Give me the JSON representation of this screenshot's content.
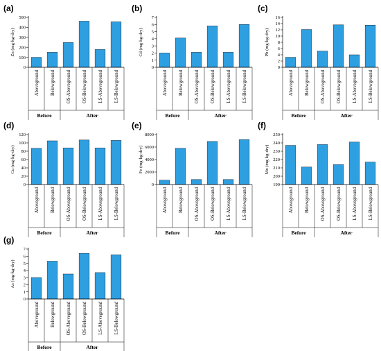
{
  "figure": {
    "bar_color": "#2e9fe0",
    "bar_edge_color": "#1a2a3a",
    "groups": [
      "Before",
      "After"
    ]
  },
  "chart_data": [
    {
      "type": "bar",
      "panel": "(a)",
      "ylabel": "Zn (mg·kg-dry)",
      "categories": [
        "Aboveground",
        "Belowground",
        "OS-Aboveground",
        "OS-Belowground",
        "LS-Aboveground",
        "LS-Belowground"
      ],
      "values": [
        100,
        150,
        248,
        462,
        178,
        455
      ],
      "ylim": [
        0,
        500
      ],
      "ticks": [
        0,
        100,
        200,
        300,
        400,
        500
      ],
      "grid": false
    },
    {
      "type": "bar",
      "panel": "(b)",
      "ylabel": "Cd (mg·kg-dry)",
      "categories": [
        "Aboveground",
        "Belowground",
        "OS-Aboveground",
        "OS-Belowground",
        "LS-Aboveground",
        "LS-Belowground"
      ],
      "values": [
        2.0,
        4.1,
        2.1,
        5.8,
        2.1,
        6.0
      ],
      "ylim": [
        0,
        7
      ],
      "ticks": [
        0,
        1,
        2,
        3,
        4,
        5,
        6,
        7
      ],
      "grid": false
    },
    {
      "type": "bar",
      "panel": "(c)",
      "ylabel": "Pb (mg·kg-dry)",
      "categories": [
        "Aboveground",
        "Belowground",
        "OS-Aboveground",
        "OS-Belowground",
        "LS-Aboveground",
        "LS-Belowground"
      ],
      "values": [
        3.2,
        12.1,
        5.2,
        13.6,
        4.0,
        13.5
      ],
      "ylim": [
        0,
        16
      ],
      "ticks": [
        0,
        2,
        4,
        6,
        8,
        10,
        12,
        14,
        16
      ],
      "grid": false
    },
    {
      "type": "bar",
      "panel": "(d)",
      "ylabel": "Cu (mg·kg-dry)",
      "categories": [
        "Aboveground",
        "Belowground",
        "OS-Aboveground",
        "OS-Belowground",
        "LS-Aboveground",
        "LS-Belowground"
      ],
      "values": [
        87,
        105,
        88,
        107,
        88,
        106
      ],
      "ylim": [
        0,
        120
      ],
      "ticks": [
        0,
        20,
        40,
        60,
        80,
        100,
        120
      ],
      "grid": false
    },
    {
      "type": "bar",
      "panel": "(e)",
      "ylabel": "Fe (mg·kg-dry)",
      "categories": [
        "Aboveground",
        "Belowground",
        "OS-Aboveground",
        "OS-Belowground",
        "LS-Aboveground",
        "LS-Belowground"
      ],
      "values": [
        700,
        5800,
        800,
        6900,
        800,
        7200
      ],
      "ylim": [
        0,
        8000
      ],
      "ticks": [
        0,
        2000,
        4000,
        6000,
        8000
      ],
      "grid": false
    },
    {
      "type": "bar",
      "panel": "(f)",
      "ylabel": "Mn (mg·kg-dry)",
      "categories": [
        "Aboveground",
        "Belowground",
        "OS-Aboveground",
        "OS-Belowground",
        "LS-Aboveground",
        "LS-Belowground"
      ],
      "values": [
        237,
        211,
        238,
        214,
        241,
        217
      ],
      "ylim": [
        190,
        250
      ],
      "ticks": [
        190,
        200,
        210,
        220,
        230,
        240,
        250
      ],
      "grid": false
    },
    {
      "type": "bar",
      "panel": "(g)",
      "ylabel": "As (mg·kg-dry)",
      "categories": [
        "Aboveground",
        "Belowground",
        "OS-Aboveground",
        "OS-Belowground",
        "LS-Aboveground",
        "LS-Belowground"
      ],
      "values": [
        3.0,
        5.3,
        3.5,
        6.4,
        3.7,
        6.2
      ],
      "ylim": [
        0,
        7
      ],
      "ticks": [
        0,
        1,
        2,
        3,
        4,
        5,
        6,
        7
      ],
      "grid": false
    }
  ]
}
